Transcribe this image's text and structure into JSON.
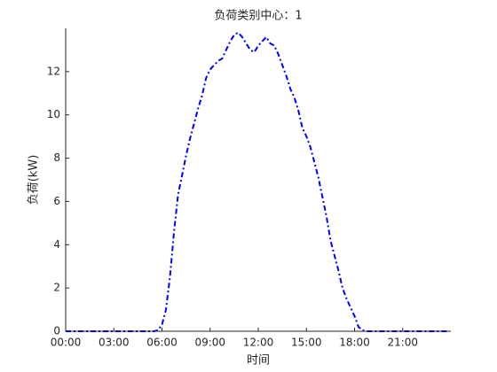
{
  "chart_data": {
    "type": "line",
    "title": "负荷类别中心：1",
    "x_label": "时间",
    "y_label": "负荷(kW)",
    "x": [
      0,
      0.25,
      0.5,
      0.75,
      1,
      1.25,
      1.5,
      1.75,
      2,
      2.25,
      2.5,
      2.75,
      3,
      3.25,
      3.5,
      3.75,
      4,
      4.25,
      4.5,
      4.75,
      5,
      5.25,
      5.5,
      5.75,
      6,
      6.25,
      6.5,
      6.75,
      7,
      7.25,
      7.5,
      7.75,
      8,
      8.25,
      8.5,
      8.75,
      9,
      9.25,
      9.5,
      9.75,
      10,
      10.25,
      10.5,
      10.75,
      11,
      11.25,
      11.5,
      11.75,
      12,
      12.25,
      12.5,
      12.75,
      13,
      13.25,
      13.5,
      13.75,
      14,
      14.25,
      14.5,
      14.75,
      15,
      15.25,
      15.5,
      15.75,
      16,
      16.25,
      16.5,
      16.75,
      17,
      17.25,
      17.5,
      17.75,
      18,
      18.25,
      18.5,
      18.75,
      19,
      19.25,
      19.5,
      19.75,
      20,
      20.25,
      20.5,
      20.75,
      21,
      21.25,
      21.5,
      21.75,
      22,
      22.25,
      22.5,
      22.75,
      23,
      23.25,
      23.5,
      23.75
    ],
    "series": [
      {
        "color": "#0000ff",
        "values": [
          0,
          0,
          0,
          0,
          0,
          0,
          0,
          0,
          0,
          0,
          0,
          0,
          0,
          0,
          0,
          0,
          0,
          0,
          0,
          0,
          0,
          0,
          0,
          0.05,
          0.3,
          1.0,
          2.5,
          4.6,
          6.3,
          7.2,
          8.1,
          8.9,
          9.6,
          10.3,
          10.9,
          11.7,
          12.1,
          12.3,
          12.5,
          12.6,
          13.0,
          13.4,
          13.7,
          13.8,
          13.6,
          13.3,
          13.0,
          12.9,
          13.2,
          13.4,
          13.6,
          13.3,
          13.2,
          12.8,
          12.3,
          11.8,
          11.2,
          10.8,
          10.2,
          9.4,
          9.0,
          8.5,
          7.8,
          7.1,
          6.2,
          5.3,
          4.2,
          3.5,
          2.8,
          2.0,
          1.5,
          1.1,
          0.7,
          0.2,
          0.05,
          0,
          0,
          0,
          0,
          0,
          0,
          0,
          0,
          0,
          0,
          0,
          0,
          0,
          0,
          0,
          0,
          0,
          0,
          0,
          0,
          0
        ]
      }
    ],
    "xlim": [
      0,
      24
    ],
    "ylim": [
      0,
      14
    ],
    "xticks": [
      {
        "value": 0,
        "label": "00:00"
      },
      {
        "value": 3,
        "label": "03:00"
      },
      {
        "value": 6,
        "label": "06:00"
      },
      {
        "value": 9,
        "label": "09:00"
      },
      {
        "value": 12,
        "label": "12:00"
      },
      {
        "value": 15,
        "label": "15:00"
      },
      {
        "value": 18,
        "label": "18:00"
      },
      {
        "value": 21,
        "label": "21:00"
      }
    ],
    "yticks": [
      0,
      2,
      4,
      6,
      8,
      10,
      12
    ]
  }
}
